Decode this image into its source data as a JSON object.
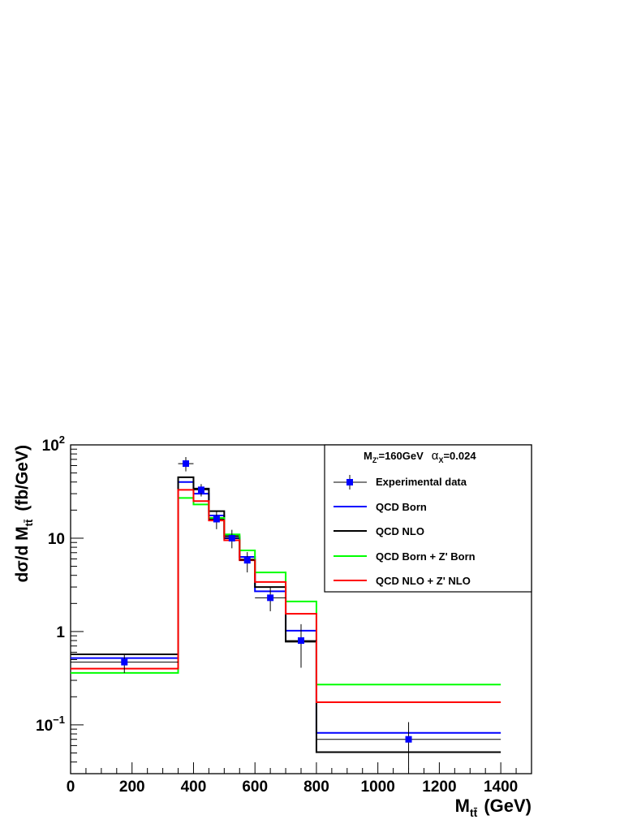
{
  "chart_data": {
    "type": "line",
    "title": "",
    "scale": {
      "y": "log",
      "x": "linear"
    },
    "xlim": [
      0,
      1500
    ],
    "ylim": [
      0.03,
      100
    ],
    "xlabel": {
      "main": "M",
      "sub": "tt̄",
      "units": "(GeV)"
    },
    "ylabel": {
      "prefix": "dσ/d M",
      "sub": "tt̄",
      "units": "(fb/GeV)"
    },
    "x_ticks": [
      {
        "value": 0,
        "label": "0"
      },
      {
        "value": 200,
        "label": "200"
      },
      {
        "value": 400,
        "label": "400"
      },
      {
        "value": 600,
        "label": "600"
      },
      {
        "value": 800,
        "label": "800"
      },
      {
        "value": 1000,
        "label": "1000"
      },
      {
        "value": 1200,
        "label": "1200"
      },
      {
        "value": 1400,
        "label": "1400"
      }
    ],
    "y_ticks": [
      {
        "value": 0.1,
        "base": "10",
        "exp": "−1"
      },
      {
        "value": 1,
        "base": "1",
        "exp": ""
      },
      {
        "value": 10,
        "base": "10",
        "exp": ""
      },
      {
        "value": 100,
        "base": "10",
        "exp": "2"
      }
    ],
    "bin_edges": [
      0,
      350,
      400,
      450,
      500,
      550,
      600,
      700,
      800,
      1400
    ],
    "series": [
      {
        "name": "QCD Born",
        "color": "#0000ff",
        "values": [
          0.52,
          40,
          30,
          17.5,
          10,
          6.3,
          2.7,
          1.02,
          0.082
        ]
      },
      {
        "name": "QCD NLO",
        "color": "#000000",
        "values": [
          0.57,
          45,
          34,
          19.5,
          10.5,
          5.9,
          3.0,
          0.78,
          0.051
        ]
      },
      {
        "name": "QCD Born + Z' Born",
        "color": "#00ff00",
        "values": [
          0.36,
          27,
          23,
          16.5,
          11,
          7.4,
          4.3,
          2.1,
          0.27
        ]
      },
      {
        "name": "QCD NLO + Z' NLO",
        "color": "#ff0000",
        "values": [
          0.4,
          33,
          25,
          15.5,
          9.5,
          5.8,
          3.4,
          1.55,
          0.175
        ]
      }
    ],
    "data_points": {
      "name": "Experimental data",
      "color": "#0000ff",
      "points": [
        {
          "x": 175,
          "y": 0.47,
          "xerr": 175,
          "ylo": 0.36,
          "yhi": 0.56
        },
        {
          "x": 375,
          "y": 63,
          "xerr": 25,
          "ylo": 52,
          "yhi": 74
        },
        {
          "x": 425,
          "y": 33,
          "xerr": 25,
          "ylo": 28,
          "yhi": 38
        },
        {
          "x": 475,
          "y": 16,
          "xerr": 25,
          "ylo": 12.5,
          "yhi": 19.5
        },
        {
          "x": 525,
          "y": 10,
          "xerr": 25,
          "ylo": 7.8,
          "yhi": 12.3
        },
        {
          "x": 575,
          "y": 5.8,
          "xerr": 25,
          "ylo": 4.3,
          "yhi": 7.1
        },
        {
          "x": 650,
          "y": 2.3,
          "xerr": 50,
          "ylo": 1.65,
          "yhi": 2.95
        },
        {
          "x": 750,
          "y": 0.8,
          "xerr": 50,
          "ylo": 0.41,
          "yhi": 1.2
        },
        {
          "x": 1100,
          "y": 0.07,
          "xerr": 300,
          "ylo": 0.033,
          "yhi": 0.107
        }
      ]
    },
    "legend": {
      "placement": "top-right",
      "header": {
        "m": "M",
        "m_sub": "Z'",
        "m_val": "=160GeV",
        "alpha": "α",
        "alpha_sub": "X",
        "alpha_val": "=0.024"
      },
      "entries": [
        {
          "label": "Experimental data",
          "kind": "marker",
          "color": "#0000ff"
        },
        {
          "label": "QCD Born",
          "kind": "line",
          "color": "#0000ff"
        },
        {
          "label": "QCD NLO",
          "kind": "line",
          "color": "#000000"
        },
        {
          "label": "QCD Born + Z' Born",
          "kind": "line",
          "color": "#00ff00"
        },
        {
          "label": "QCD NLO + Z' NLO",
          "kind": "line",
          "color": "#ff0000"
        }
      ]
    }
  }
}
